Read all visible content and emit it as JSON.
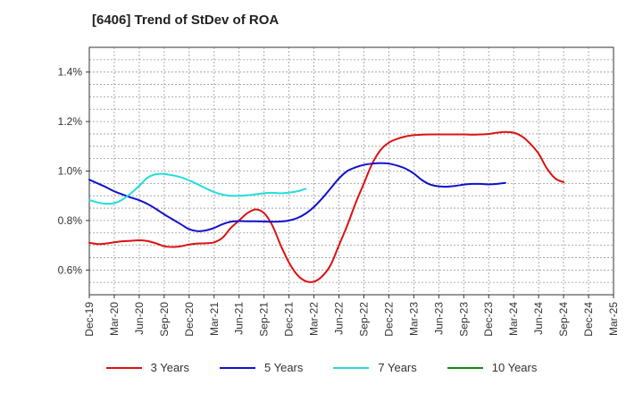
{
  "chart_data": {
    "type": "line",
    "title": "[6406]  Trend of StDev of ROA",
    "xlabel": "",
    "ylabel": "",
    "x_tick_labels": [
      "Dec-19",
      "Mar-20",
      "Jun-20",
      "Sep-20",
      "Dec-20",
      "Mar-21",
      "Jun-21",
      "Sep-21",
      "Dec-21",
      "Mar-22",
      "Jun-22",
      "Sep-22",
      "Dec-22",
      "Mar-23",
      "Jun-23",
      "Sep-23",
      "Dec-23",
      "Mar-24",
      "Jun-24",
      "Sep-24",
      "Dec-24",
      "Mar-25"
    ],
    "y_tick_labels": [
      "0.6%",
      "0.8%",
      "1.0%",
      "1.2%",
      "1.4%"
    ],
    "y_ticks": [
      0.6,
      0.8,
      1.0,
      1.2,
      1.4
    ],
    "ylim": [
      0.5,
      1.5
    ],
    "grid": true,
    "legend_position": "bottom",
    "series": [
      {
        "name": "3 Years",
        "color": "#dd1111",
        "points": [
          [
            "Dec-19",
            0.71
          ],
          [
            "Jan-20",
            0.705
          ],
          [
            "Feb-20",
            0.707
          ],
          [
            "Mar-20",
            0.712
          ],
          [
            "Apr-20",
            0.716
          ],
          [
            "May-20",
            0.718
          ],
          [
            "Jun-20",
            0.72
          ],
          [
            "Jul-20",
            0.717
          ],
          [
            "Aug-20",
            0.708
          ],
          [
            "Sep-20",
            0.696
          ],
          [
            "Oct-20",
            0.693
          ],
          [
            "Nov-20",
            0.696
          ],
          [
            "Dec-20",
            0.703
          ],
          [
            "Jan-21",
            0.707
          ],
          [
            "Feb-21",
            0.708
          ],
          [
            "Mar-21",
            0.712
          ],
          [
            "Apr-21",
            0.73
          ],
          [
            "May-21",
            0.77
          ],
          [
            "Jun-21",
            0.8
          ],
          [
            "Jul-21",
            0.83
          ],
          [
            "Aug-21",
            0.845
          ],
          [
            "Sep-21",
            0.83
          ],
          [
            "Oct-21",
            0.78
          ],
          [
            "Nov-21",
            0.7
          ],
          [
            "Dec-21",
            0.63
          ],
          [
            "Jan-22",
            0.58
          ],
          [
            "Feb-22",
            0.555
          ],
          [
            "Mar-22",
            0.553
          ],
          [
            "Apr-22",
            0.575
          ],
          [
            "May-22",
            0.62
          ],
          [
            "Jun-22",
            0.7
          ],
          [
            "Jul-22",
            0.78
          ],
          [
            "Aug-22",
            0.87
          ],
          [
            "Sep-22",
            0.95
          ],
          [
            "Oct-22",
            1.03
          ],
          [
            "Nov-22",
            1.085
          ],
          [
            "Dec-22",
            1.115
          ],
          [
            "Jan-23",
            1.13
          ],
          [
            "Feb-23",
            1.14
          ],
          [
            "Mar-23",
            1.145
          ],
          [
            "Apr-23",
            1.147
          ],
          [
            "May-23",
            1.148
          ],
          [
            "Jun-23",
            1.148
          ],
          [
            "Jul-23",
            1.148
          ],
          [
            "Aug-23",
            1.148
          ],
          [
            "Sep-23",
            1.148
          ],
          [
            "Oct-23",
            1.147
          ],
          [
            "Nov-23",
            1.148
          ],
          [
            "Dec-23",
            1.15
          ],
          [
            "Jan-24",
            1.155
          ],
          [
            "Feb-24",
            1.158
          ],
          [
            "Mar-24",
            1.155
          ],
          [
            "Apr-24",
            1.14
          ],
          [
            "May-24",
            1.11
          ],
          [
            "Jun-24",
            1.07
          ],
          [
            "Jul-24",
            1.01
          ],
          [
            "Aug-24",
            0.97
          ],
          [
            "Sep-24",
            0.955
          ]
        ]
      },
      {
        "name": "5 Years",
        "color": "#1111cc",
        "points": [
          [
            "Dec-19",
            0.965
          ],
          [
            "Jan-20",
            0.95
          ],
          [
            "Feb-20",
            0.935
          ],
          [
            "Mar-20",
            0.918
          ],
          [
            "Apr-20",
            0.905
          ],
          [
            "May-20",
            0.893
          ],
          [
            "Jun-20",
            0.882
          ],
          [
            "Jul-20",
            0.867
          ],
          [
            "Aug-20",
            0.847
          ],
          [
            "Sep-20",
            0.825
          ],
          [
            "Oct-20",
            0.805
          ],
          [
            "Nov-20",
            0.785
          ],
          [
            "Dec-20",
            0.765
          ],
          [
            "Jan-21",
            0.757
          ],
          [
            "Feb-21",
            0.76
          ],
          [
            "Mar-21",
            0.77
          ],
          [
            "Apr-21",
            0.785
          ],
          [
            "May-21",
            0.795
          ],
          [
            "Jun-21",
            0.798
          ],
          [
            "Jul-21",
            0.797
          ],
          [
            "Aug-21",
            0.797
          ],
          [
            "Sep-21",
            0.796
          ],
          [
            "Oct-21",
            0.795
          ],
          [
            "Nov-21",
            0.796
          ],
          [
            "Dec-21",
            0.8
          ],
          [
            "Jan-22",
            0.81
          ],
          [
            "Feb-22",
            0.828
          ],
          [
            "Mar-22",
            0.855
          ],
          [
            "Apr-22",
            0.89
          ],
          [
            "May-22",
            0.93
          ],
          [
            "Jun-22",
            0.97
          ],
          [
            "Jul-22",
            1.0
          ],
          [
            "Aug-22",
            1.015
          ],
          [
            "Sep-22",
            1.025
          ],
          [
            "Oct-22",
            1.03
          ],
          [
            "Nov-22",
            1.032
          ],
          [
            "Dec-22",
            1.03
          ],
          [
            "Jan-23",
            1.022
          ],
          [
            "Feb-23",
            1.01
          ],
          [
            "Mar-23",
            0.99
          ],
          [
            "Apr-23",
            0.963
          ],
          [
            "May-23",
            0.945
          ],
          [
            "Jun-23",
            0.938
          ],
          [
            "Jul-23",
            0.937
          ],
          [
            "Aug-23",
            0.94
          ],
          [
            "Sep-23",
            0.945
          ],
          [
            "Oct-23",
            0.948
          ],
          [
            "Nov-23",
            0.948
          ],
          [
            "Dec-23",
            0.946
          ],
          [
            "Jan-24",
            0.948
          ],
          [
            "Feb-24",
            0.952
          ]
        ]
      },
      {
        "name": "7 Years",
        "color": "#22dddd",
        "points": [
          [
            "Dec-19",
            0.883
          ],
          [
            "Jan-20",
            0.873
          ],
          [
            "Feb-20",
            0.868
          ],
          [
            "Mar-20",
            0.87
          ],
          [
            "Apr-20",
            0.885
          ],
          [
            "May-20",
            0.91
          ],
          [
            "Jun-20",
            0.94
          ],
          [
            "Jul-20",
            0.973
          ],
          [
            "Aug-20",
            0.987
          ],
          [
            "Sep-20",
            0.988
          ],
          [
            "Oct-20",
            0.983
          ],
          [
            "Nov-20",
            0.975
          ],
          [
            "Dec-20",
            0.962
          ],
          [
            "Jan-21",
            0.947
          ],
          [
            "Feb-21",
            0.93
          ],
          [
            "Mar-21",
            0.915
          ],
          [
            "Apr-21",
            0.905
          ],
          [
            "May-21",
            0.9
          ],
          [
            "Jun-21",
            0.9
          ],
          [
            "Jul-21",
            0.902
          ],
          [
            "Aug-21",
            0.906
          ],
          [
            "Sep-21",
            0.91
          ],
          [
            "Oct-21",
            0.912
          ],
          [
            "Nov-21",
            0.91
          ],
          [
            "Dec-21",
            0.913
          ],
          [
            "Jan-22",
            0.918
          ],
          [
            "Feb-22",
            0.928
          ]
        ]
      },
      {
        "name": "10 Years",
        "color": "#118811",
        "points": []
      }
    ]
  }
}
